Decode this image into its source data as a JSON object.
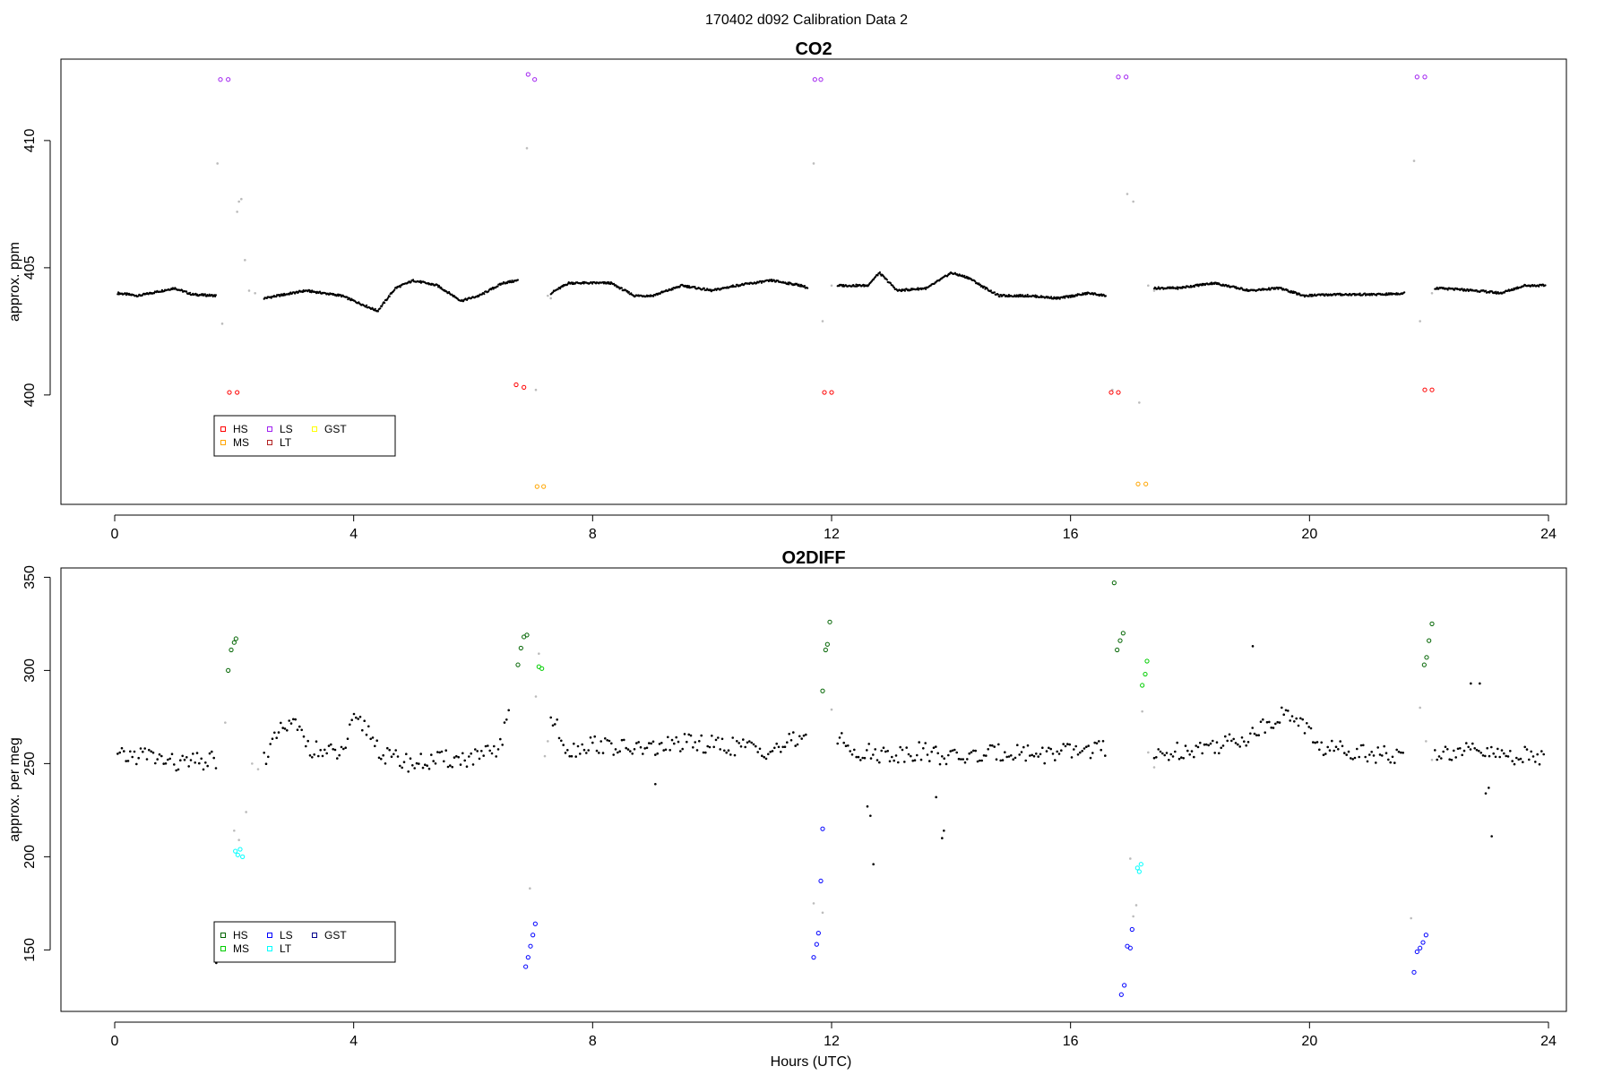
{
  "figure": {
    "title": "170402   d092   Calibration Data 2",
    "xlabel": "Hours (UTC)"
  },
  "chart_data": [
    {
      "type": "scatter",
      "title": "CO2",
      "xlabel": "",
      "ylabel": "approx. ppm",
      "xlim": [
        -0.9,
        24.3
      ],
      "ylim": [
        395.7,
        413.2
      ],
      "xticks": [
        0,
        4,
        8,
        12,
        16,
        20,
        24
      ],
      "yticks": [
        400,
        405,
        410
      ],
      "grid": false,
      "legend": {
        "position": "bottom-left",
        "entries": [
          {
            "label": "HS",
            "color": "#ff0000"
          },
          {
            "label": "MS",
            "color": "#ffa500"
          },
          {
            "label": "LS",
            "color": "#a020f0"
          },
          {
            "label": "LT",
            "color": "#b22222"
          },
          {
            "label": "GST",
            "color": "#ffff00"
          }
        ]
      },
      "ambient": {
        "color": "#000000",
        "segments": [
          {
            "x": [
              0.05,
              0.4,
              0.8,
              1.0,
              1.3,
              1.7
            ],
            "y": [
              404.0,
              403.9,
              404.1,
              404.2,
              403.95,
              403.9
            ]
          },
          {
            "x": [
              2.5,
              3.2,
              3.8,
              4.2,
              4.4,
              4.7,
              5.0,
              5.4,
              5.8,
              6.1,
              6.5,
              6.75
            ],
            "y": [
              403.8,
              404.1,
              403.9,
              403.5,
              403.3,
              404.2,
              404.5,
              404.3,
              403.7,
              403.9,
              404.4,
              404.5
            ]
          },
          {
            "x": [
              7.3,
              7.6,
              8.3,
              8.7,
              9.0,
              9.5,
              10.0,
              10.4,
              11.0,
              11.5,
              11.6
            ],
            "y": [
              404.0,
              404.4,
              404.4,
              403.9,
              403.9,
              404.3,
              404.1,
              404.3,
              404.5,
              404.3,
              404.2
            ]
          },
          {
            "x": [
              12.1,
              12.6,
              12.8,
              13.1,
              13.6,
              14.0,
              14.3,
              14.5,
              14.8,
              15.3,
              15.8,
              16.3,
              16.6
            ],
            "y": [
              404.3,
              404.3,
              404.8,
              404.1,
              404.2,
              404.8,
              404.6,
              404.3,
              403.9,
              403.9,
              403.8,
              404.0,
              403.9
            ]
          },
          {
            "x": [
              17.4,
              17.8,
              18.4,
              19.0,
              19.5,
              19.9,
              20.4,
              21.2,
              21.6
            ],
            "y": [
              404.2,
              404.2,
              404.4,
              404.1,
              404.2,
              403.9,
              403.95,
              403.95,
              404.0
            ]
          },
          {
            "x": [
              22.1,
              22.8,
              23.2,
              23.6,
              23.95
            ],
            "y": [
              404.2,
              404.1,
              404.0,
              404.3,
              404.3
            ]
          }
        ]
      },
      "transition": {
        "color": "#bbbbbb",
        "points": [
          {
            "x": 1.72,
            "y": 409.1
          },
          {
            "x": 1.8,
            "y": 402.8
          },
          {
            "x": 2.05,
            "y": 407.2
          },
          {
            "x": 2.08,
            "y": 407.6
          },
          {
            "x": 2.12,
            "y": 407.7
          },
          {
            "x": 2.18,
            "y": 405.3
          },
          {
            "x": 2.25,
            "y": 404.1
          },
          {
            "x": 2.35,
            "y": 404.0
          },
          {
            "x": 6.9,
            "y": 409.7
          },
          {
            "x": 7.05,
            "y": 400.2
          },
          {
            "x": 7.25,
            "y": 403.9
          },
          {
            "x": 7.3,
            "y": 403.8
          },
          {
            "x": 11.7,
            "y": 409.1
          },
          {
            "x": 11.85,
            "y": 402.9
          },
          {
            "x": 12.0,
            "y": 404.3
          },
          {
            "x": 16.7,
            "y": 400.2
          },
          {
            "x": 16.95,
            "y": 407.9
          },
          {
            "x": 17.05,
            "y": 407.6
          },
          {
            "x": 17.15,
            "y": 399.7
          },
          {
            "x": 17.3,
            "y": 404.3
          },
          {
            "x": 17.4,
            "y": 404.1
          },
          {
            "x": 21.75,
            "y": 409.2
          },
          {
            "x": 21.85,
            "y": 402.9
          },
          {
            "x": 22.05,
            "y": 404.0
          }
        ]
      },
      "calibrations": [
        {
          "name": "LS",
          "color": "#a020f0",
          "points": [
            {
              "x": 1.77,
              "y": 412.4
            },
            {
              "x": 1.9,
              "y": 412.4
            },
            {
              "x": 6.92,
              "y": 412.6
            },
            {
              "x": 7.03,
              "y": 412.4
            },
            {
              "x": 11.72,
              "y": 412.4
            },
            {
              "x": 11.82,
              "y": 412.4
            },
            {
              "x": 16.8,
              "y": 412.5
            },
            {
              "x": 16.93,
              "y": 412.5
            },
            {
              "x": 21.8,
              "y": 412.5
            },
            {
              "x": 21.93,
              "y": 412.5
            }
          ]
        },
        {
          "name": "HS",
          "color": "#ff0000",
          "points": [
            {
              "x": 1.92,
              "y": 400.1
            },
            {
              "x": 2.05,
              "y": 400.1
            },
            {
              "x": 6.72,
              "y": 400.4
            },
            {
              "x": 6.85,
              "y": 400.3
            },
            {
              "x": 11.88,
              "y": 400.1
            },
            {
              "x": 12.0,
              "y": 400.1
            },
            {
              "x": 16.68,
              "y": 400.1
            },
            {
              "x": 16.8,
              "y": 400.1
            },
            {
              "x": 21.93,
              "y": 400.2
            },
            {
              "x": 22.05,
              "y": 400.2
            }
          ]
        },
        {
          "name": "MS",
          "color": "#ffa500",
          "points": [
            {
              "x": 7.07,
              "y": 396.4
            },
            {
              "x": 7.18,
              "y": 396.4
            },
            {
              "x": 17.13,
              "y": 396.5
            },
            {
              "x": 17.26,
              "y": 396.5
            }
          ]
        }
      ]
    },
    {
      "type": "scatter",
      "title": "O2DIFF",
      "xlabel": "Hours (UTC)",
      "ylabel": "approx. per meg",
      "xlim": [
        -0.9,
        24.3
      ],
      "ylim": [
        117,
        355
      ],
      "xticks": [
        0,
        4,
        8,
        12,
        16,
        20,
        24
      ],
      "yticks": [
        150,
        200,
        250,
        300,
        350
      ],
      "grid": false,
      "legend": {
        "position": "bottom-left",
        "entries": [
          {
            "label": "HS",
            "color": "#006400"
          },
          {
            "label": "MS",
            "color": "#00cd00"
          },
          {
            "label": "LS",
            "color": "#0000ff"
          },
          {
            "label": "LT",
            "color": "#00ffff"
          },
          {
            "label": "GST",
            "color": "#00008b"
          }
        ]
      },
      "ambient": {
        "color": "#000000",
        "segments": [
          {
            "x": [
              0.05,
              0.5,
              1.0,
              1.5,
              1.7
            ],
            "y": [
              253,
              255,
              250,
              251,
              252
            ]
          },
          {
            "x": [
              2.5,
              2.8,
              3.0,
              3.3,
              3.5,
              3.8,
              4.0,
              4.2,
              4.5,
              5.0,
              5.5,
              6.0,
              6.4,
              6.6
            ],
            "y": [
              253,
              268,
              271,
              258,
              256,
              255,
              272,
              270,
              254,
              250,
              252,
              253,
              256,
              275
            ]
          },
          {
            "x": [
              7.3,
              7.6,
              8.0,
              8.5,
              9.0,
              9.5,
              10.0,
              10.5,
              11.0,
              11.5,
              11.6
            ],
            "y": [
              275,
              257,
              261,
              258,
              258,
              261,
              260,
              259,
              257,
              264,
              270
            ]
          },
          {
            "x": [
              12.1,
              12.5,
              13.0,
              13.5,
              14.0,
              14.5,
              15.0,
              15.5,
              16.0,
              16.5,
              16.6
            ],
            "y": [
              263,
              256,
              255,
              257,
              253,
              254,
              257,
              255,
              256,
              259,
              255
            ]
          },
          {
            "x": [
              17.4,
              17.8,
              18.2,
              18.6,
              19.0,
              19.5,
              19.8,
              20.2,
              20.6,
              21.0,
              21.5,
              21.6
            ],
            "y": [
              253,
              257,
              259,
              261,
              265,
              276,
              275,
              258,
              258,
              256,
              253,
              255
            ]
          },
          {
            "x": [
              22.1,
              22.5,
              23.0,
              23.5,
              23.95
            ],
            "y": [
              256,
              257,
              255,
              254,
              254
            ]
          }
        ]
      },
      "outliers": {
        "color": "#000000",
        "points": [
          {
            "x": 1.7,
            "y": 143
          },
          {
            "x": 9.05,
            "y": 239
          },
          {
            "x": 12.6,
            "y": 227
          },
          {
            "x": 12.65,
            "y": 222
          },
          {
            "x": 12.7,
            "y": 196
          },
          {
            "x": 13.75,
            "y": 232
          },
          {
            "x": 13.85,
            "y": 210
          },
          {
            "x": 13.88,
            "y": 214
          },
          {
            "x": 19.05,
            "y": 313
          },
          {
            "x": 22.95,
            "y": 234
          },
          {
            "x": 23.0,
            "y": 237
          },
          {
            "x": 23.05,
            "y": 211
          },
          {
            "x": 22.7,
            "y": 293
          },
          {
            "x": 22.85,
            "y": 293
          }
        ]
      },
      "transition": {
        "color": "#bbbbbb",
        "points": [
          {
            "x": 1.85,
            "y": 272
          },
          {
            "x": 2.0,
            "y": 214
          },
          {
            "x": 2.08,
            "y": 209
          },
          {
            "x": 2.2,
            "y": 224
          },
          {
            "x": 2.3,
            "y": 250
          },
          {
            "x": 2.4,
            "y": 247
          },
          {
            "x": 6.95,
            "y": 183
          },
          {
            "x": 7.05,
            "y": 286
          },
          {
            "x": 7.1,
            "y": 309
          },
          {
            "x": 7.2,
            "y": 254
          },
          {
            "x": 7.25,
            "y": 262
          },
          {
            "x": 11.7,
            "y": 175
          },
          {
            "x": 11.85,
            "y": 170
          },
          {
            "x": 12.0,
            "y": 279
          },
          {
            "x": 17.0,
            "y": 199
          },
          {
            "x": 17.05,
            "y": 168
          },
          {
            "x": 17.1,
            "y": 174
          },
          {
            "x": 17.2,
            "y": 278
          },
          {
            "x": 17.3,
            "y": 256
          },
          {
            "x": 17.4,
            "y": 248
          },
          {
            "x": 21.7,
            "y": 167
          },
          {
            "x": 21.85,
            "y": 280
          },
          {
            "x": 21.95,
            "y": 262
          },
          {
            "x": 22.05,
            "y": 252
          }
        ]
      },
      "calibrations": [
        {
          "name": "HS",
          "color": "#006400",
          "points": [
            {
              "x": 1.9,
              "y": 300
            },
            {
              "x": 1.95,
              "y": 311
            },
            {
              "x": 2.0,
              "y": 315
            },
            {
              "x": 2.03,
              "y": 317
            },
            {
              "x": 6.75,
              "y": 303
            },
            {
              "x": 6.8,
              "y": 312
            },
            {
              "x": 6.85,
              "y": 318
            },
            {
              "x": 6.9,
              "y": 319
            },
            {
              "x": 11.85,
              "y": 289
            },
            {
              "x": 11.9,
              "y": 311
            },
            {
              "x": 11.93,
              "y": 314
            },
            {
              "x": 11.97,
              "y": 326
            },
            {
              "x": 16.73,
              "y": 347
            },
            {
              "x": 16.78,
              "y": 311
            },
            {
              "x": 16.83,
              "y": 316
            },
            {
              "x": 16.88,
              "y": 320
            },
            {
              "x": 21.92,
              "y": 303
            },
            {
              "x": 21.96,
              "y": 307
            },
            {
              "x": 22.0,
              "y": 316
            },
            {
              "x": 22.05,
              "y": 325
            }
          ]
        },
        {
          "name": "MS",
          "color": "#00cd00",
          "points": [
            {
              "x": 7.1,
              "y": 302
            },
            {
              "x": 7.15,
              "y": 301
            },
            {
              "x": 17.2,
              "y": 292
            },
            {
              "x": 17.25,
              "y": 298
            },
            {
              "x": 17.28,
              "y": 305
            }
          ]
        },
        {
          "name": "LS",
          "color": "#0000ff",
          "points": [
            {
              "x": 6.88,
              "y": 141
            },
            {
              "x": 6.92,
              "y": 146
            },
            {
              "x": 6.96,
              "y": 152
            },
            {
              "x": 7.0,
              "y": 158
            },
            {
              "x": 7.04,
              "y": 164
            },
            {
              "x": 11.7,
              "y": 146
            },
            {
              "x": 11.75,
              "y": 153
            },
            {
              "x": 11.78,
              "y": 159
            },
            {
              "x": 11.82,
              "y": 187
            },
            {
              "x": 11.85,
              "y": 215
            },
            {
              "x": 16.85,
              "y": 126
            },
            {
              "x": 16.9,
              "y": 131
            },
            {
              "x": 16.95,
              "y": 152
            },
            {
              "x": 17.0,
              "y": 151
            },
            {
              "x": 17.03,
              "y": 161
            },
            {
              "x": 21.75,
              "y": 138
            },
            {
              "x": 21.8,
              "y": 149
            },
            {
              "x": 21.85,
              "y": 151
            },
            {
              "x": 21.9,
              "y": 154
            },
            {
              "x": 21.95,
              "y": 158
            }
          ]
        },
        {
          "name": "LT",
          "color": "#00ffff",
          "points": [
            {
              "x": 2.02,
              "y": 203
            },
            {
              "x": 2.06,
              "y": 201
            },
            {
              "x": 2.1,
              "y": 204
            },
            {
              "x": 2.14,
              "y": 200
            },
            {
              "x": 17.12,
              "y": 194
            },
            {
              "x": 17.15,
              "y": 192
            },
            {
              "x": 17.18,
              "y": 196
            }
          ]
        }
      ]
    }
  ]
}
